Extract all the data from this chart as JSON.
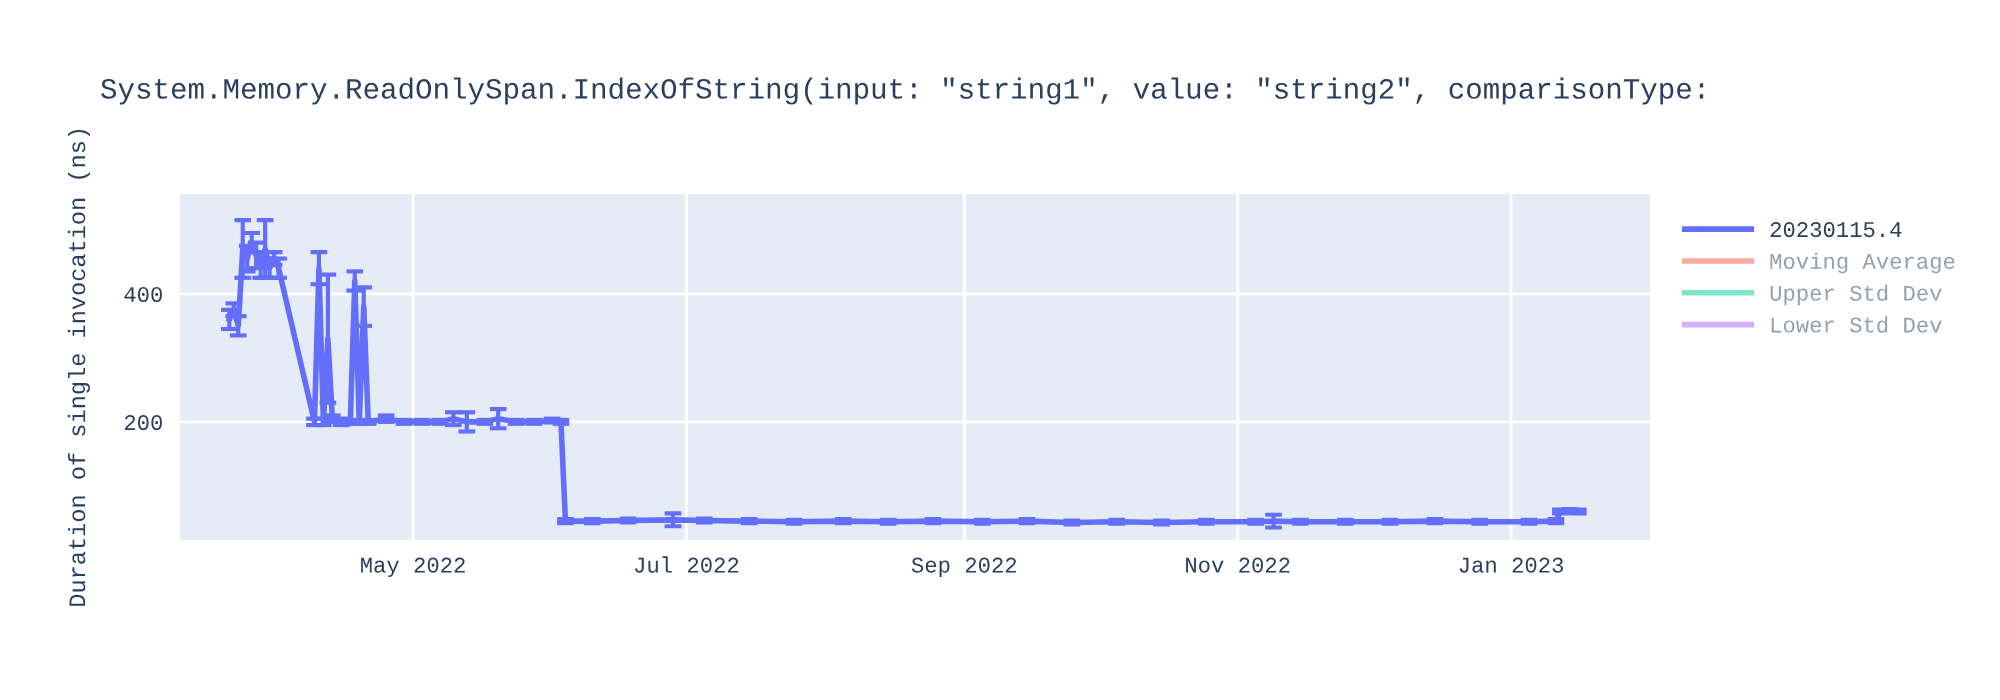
{
  "chart_data": {
    "type": "line",
    "title": "System.Memory.ReadOnlySpan.IndexOfString(input: \"string1\", value: \"string2\", comparisonType:",
    "ylabel": "Duration of single invocation (ns)",
    "xlim": [
      "2022-03-10",
      "2023-02-01"
    ],
    "xticks": [
      {
        "value": "2022-05-01",
        "label": "May 2022"
      },
      {
        "value": "2022-07-01",
        "label": "Jul 2022"
      },
      {
        "value": "2022-09-01",
        "label": "Sep 2022"
      },
      {
        "value": "2022-11-01",
        "label": "Nov 2022"
      },
      {
        "value": "2023-01-01",
        "label": "Jan 2023"
      }
    ],
    "ylim": [
      16,
      556
    ],
    "yticks": [
      200,
      400
    ],
    "grid": true,
    "legend": "top right",
    "marker": "none",
    "line_style": "solid",
    "series": [
      {
        "name": "20230115.4",
        "color": "#636efa",
        "x": [
          "2022-03-21",
          "2022-03-22",
          "2022-03-23",
          "2022-03-24",
          "2022-03-25",
          "2022-03-26",
          "2022-03-27",
          "2022-03-28",
          "2022-03-29",
          "2022-03-30",
          "2022-03-31",
          "2022-04-01",
          "2022-04-09",
          "2022-04-10",
          "2022-04-11",
          "2022-04-12",
          "2022-04-13",
          "2022-04-15",
          "2022-04-17",
          "2022-04-18",
          "2022-04-19",
          "2022-04-20",
          "2022-04-21",
          "2022-04-25",
          "2022-04-29",
          "2022-05-03",
          "2022-05-07",
          "2022-05-10",
          "2022-05-13",
          "2022-05-17",
          "2022-05-20",
          "2022-05-24",
          "2022-05-28",
          "2022-06-01",
          "2022-06-03",
          "2022-06-04",
          "2022-06-10",
          "2022-06-18",
          "2022-06-28",
          "2022-07-05",
          "2022-07-15",
          "2022-07-25",
          "2022-08-05",
          "2022-08-15",
          "2022-08-25",
          "2022-09-05",
          "2022-09-15",
          "2022-09-25",
          "2022-10-05",
          "2022-10-15",
          "2022-10-25",
          "2022-11-05",
          "2022-11-09",
          "2022-11-15",
          "2022-11-25",
          "2022-12-05",
          "2022-12-15",
          "2022-12-25",
          "2023-01-05",
          "2023-01-11",
          "2023-01-12",
          "2023-01-14",
          "2023-01-16"
        ],
        "values": [
          360,
          375,
          350,
          470,
          455,
          480,
          460,
          445,
          470,
          440,
          455,
          440,
          200,
          440,
          200,
          330,
          205,
          200,
          200,
          420,
          200,
          380,
          200,
          205,
          200,
          200,
          200,
          205,
          200,
          200,
          205,
          200,
          200,
          202,
          200,
          45,
          45,
          46,
          47,
          46,
          45,
          44,
          45,
          44,
          45,
          44,
          45,
          43,
          44,
          43,
          44,
          44,
          45,
          44,
          44,
          44,
          45,
          44,
          44,
          45,
          60,
          61,
          60
        ],
        "errors": [
          15,
          10,
          15,
          45,
          20,
          15,
          20,
          20,
          45,
          15,
          10,
          15,
          5,
          25,
          5,
          100,
          5,
          5,
          3,
          15,
          3,
          30,
          3,
          5,
          3,
          3,
          3,
          10,
          15,
          3,
          15,
          3,
          3,
          3,
          3,
          3,
          3,
          3,
          10,
          3,
          3,
          3,
          3,
          3,
          3,
          3,
          3,
          3,
          3,
          3,
          3,
          3,
          10,
          3,
          3,
          3,
          3,
          3,
          3,
          3,
          3,
          3,
          3
        ]
      },
      {
        "name": "Moving Average",
        "color": "#ef553b"
      },
      {
        "name": "Upper Std Dev",
        "color": "#00cc96"
      },
      {
        "name": "Lower Std Dev",
        "color": "#ab63fa"
      }
    ]
  }
}
